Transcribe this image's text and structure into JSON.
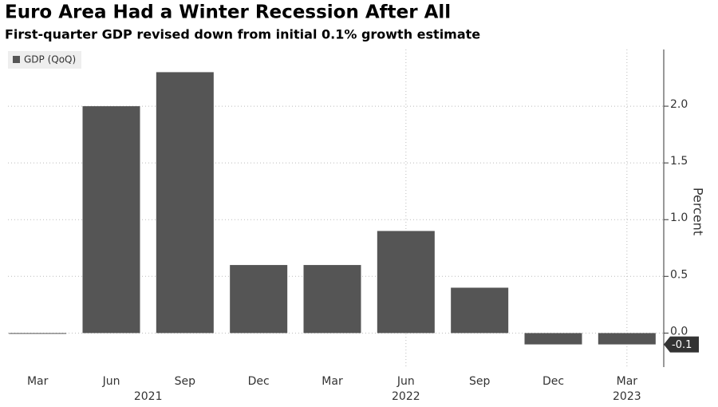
{
  "chart_data": {
    "type": "bar",
    "title": "Euro Area Had a Winter Recession After All",
    "subtitle": "First-quarter GDP revised down from initial 0.1% growth estimate",
    "categories": [
      "Mar",
      "Jun",
      "Sep",
      "Dec",
      "Mar",
      "Jun",
      "Sep",
      "Dec",
      "Mar"
    ],
    "year_labels": [
      "2021",
      "2022",
      "2023"
    ],
    "series": [
      {
        "name": "GDP (QoQ)",
        "color": "#555555",
        "values": [
          0.0,
          2.0,
          2.3,
          0.6,
          0.6,
          0.9,
          0.4,
          -0.1,
          -0.1
        ]
      }
    ],
    "y_axis_label": "Percent",
    "ylim": [
      -0.3,
      2.5
    ],
    "yticks": [
      {
        "value": 0,
        "label": "0.0"
      },
      0.5,
      {
        "value": 1,
        "label": "1.0"
      },
      1.5,
      {
        "value": 2,
        "label": "2.0"
      }
    ],
    "grid": true
  }
}
